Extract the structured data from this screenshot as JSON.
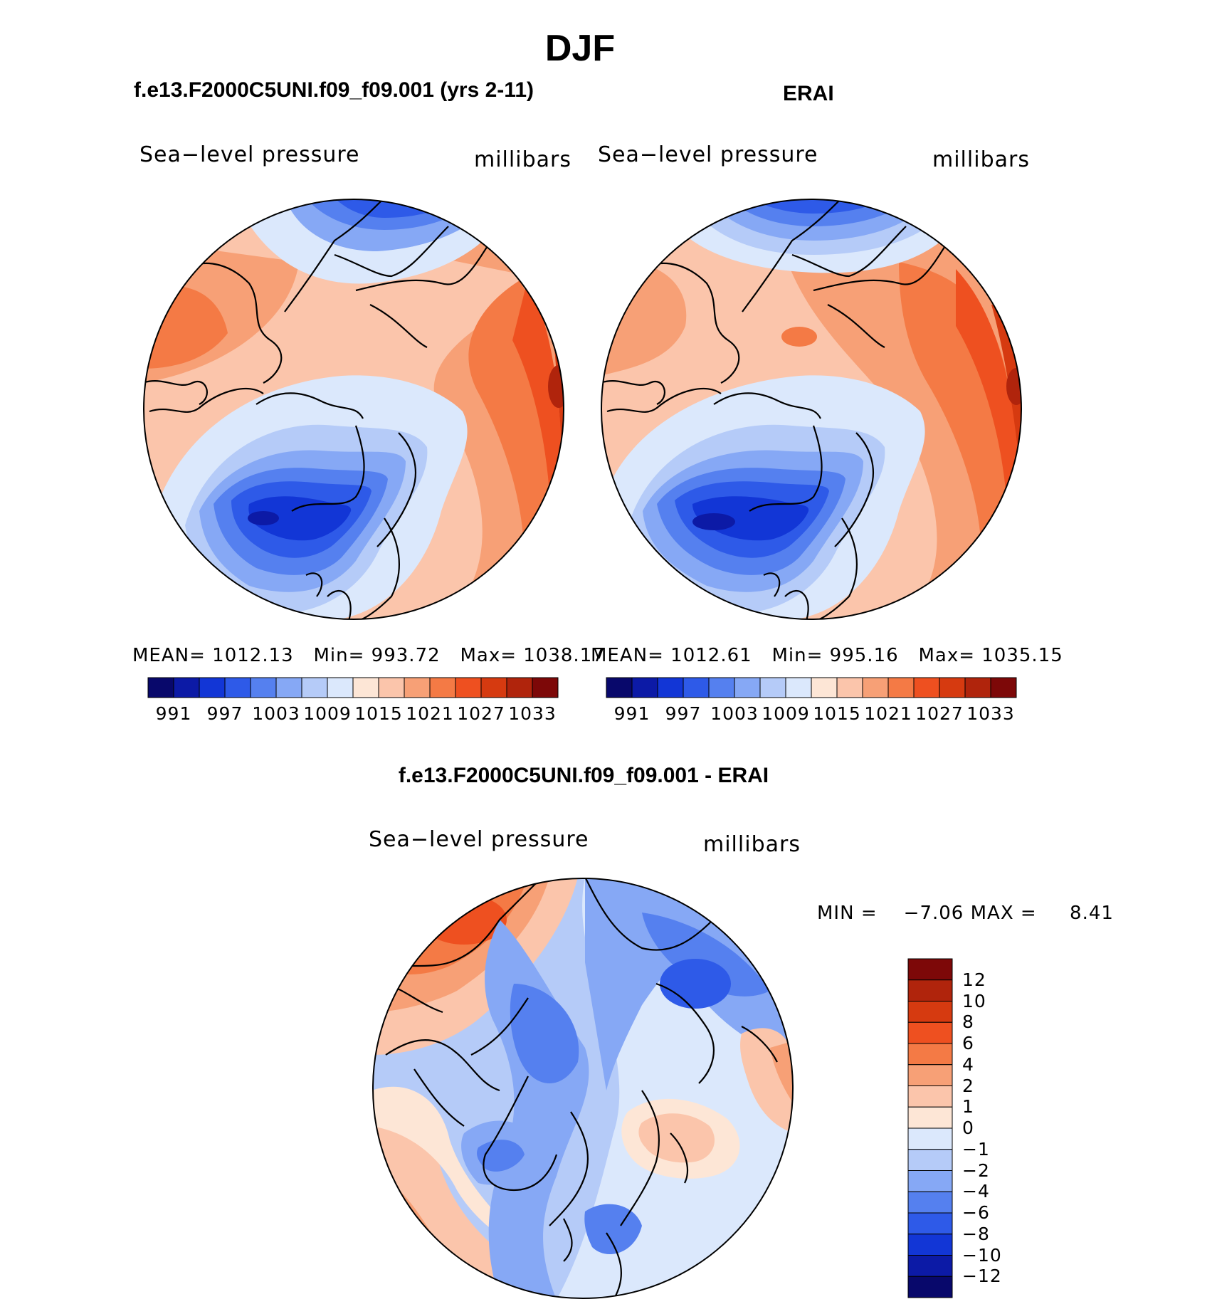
{
  "title": "DJF",
  "left_panel": {
    "case_title": "f.e13.F2000C5UNI.f09_f09.001 (yrs 2-11)",
    "variable": "Sea−level pressure",
    "units": "millibars",
    "stats": {
      "mean_label": "MEAN=",
      "mean": "1012.13",
      "min_label": "Min=",
      "min": "993.72",
      "max_label": "Max=",
      "max": "1038.17"
    }
  },
  "right_panel": {
    "case_title": "ERAI",
    "variable": "Sea−level pressure",
    "units": "millibars",
    "stats": {
      "mean_label": "MEAN=",
      "mean": "1012.61",
      "min_label": "Min=",
      "min": "995.16",
      "max_label": "Max=",
      "max": "1035.15"
    }
  },
  "abs_colorbar": {
    "labels": [
      "991",
      "997",
      "1003",
      "1009",
      "1015",
      "1021",
      "1027",
      "1033"
    ],
    "colors": [
      "#08086b",
      "#0c1aa6",
      "#1236d6",
      "#2e5ae8",
      "#5580ef",
      "#86a8f5",
      "#b5cbf8",
      "#dbe8fc",
      "#fde6d6",
      "#fbc5ab",
      "#f7a076",
      "#f47a45",
      "#ee5020",
      "#d63a10",
      "#b0240c",
      "#7d0808"
    ]
  },
  "diff_panel": {
    "title": "f.e13.F2000C5UNI.f09_f09.001 - ERAI",
    "variable": "Sea−level pressure",
    "units": "millibars",
    "stats": {
      "min_label": "MIN =",
      "min": "−7.06",
      "max_label": "MAX =",
      "max": "8.41"
    }
  },
  "diff_colorbar": {
    "labels": [
      "12",
      "10",
      "8",
      "6",
      "4",
      "2",
      "1",
      "0",
      "−1",
      "−2",
      "−4",
      "−6",
      "−8",
      "−10",
      "−12"
    ],
    "colors": [
      "#7d0808",
      "#b0240c",
      "#d63a10",
      "#ee5020",
      "#f47a45",
      "#f7a076",
      "#fbc5ab",
      "#fde6d6",
      "#dbe8fc",
      "#b5cbf8",
      "#86a8f5",
      "#5580ef",
      "#2e5ae8",
      "#1236d6",
      "#0c1aa6",
      "#08086b"
    ]
  }
}
